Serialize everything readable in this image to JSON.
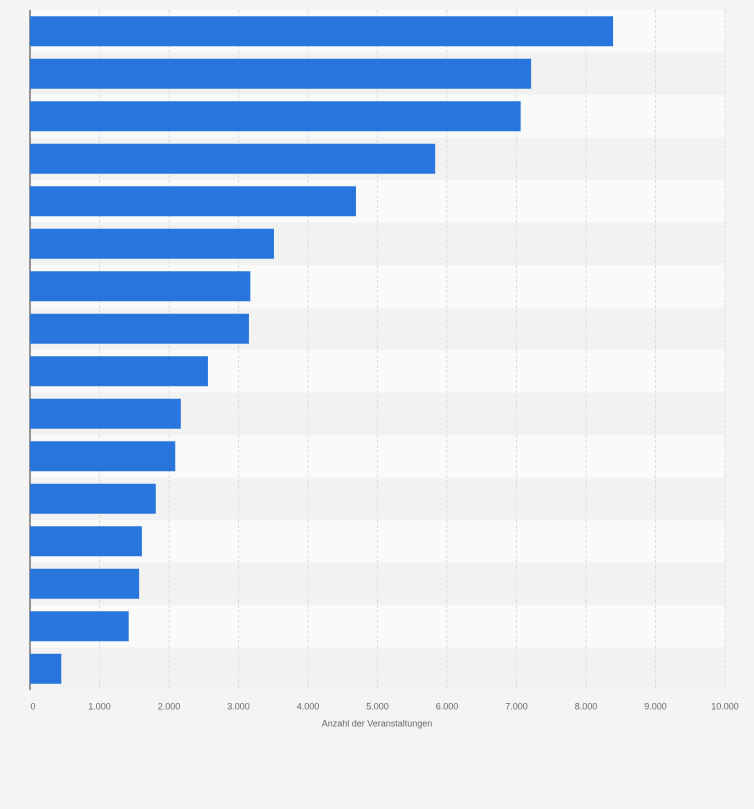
{
  "chart_data": {
    "type": "bar",
    "orientation": "horizontal",
    "x_label": "Anzahl der Veranstaltungen",
    "categories": [
      null,
      null,
      null,
      null,
      null,
      null,
      null,
      null,
      null,
      null,
      null,
      null,
      null,
      null,
      null,
      null
    ],
    "values": [
      8390,
      7210,
      7060,
      5830,
      4690,
      3510,
      3170,
      3150,
      2560,
      2170,
      2090,
      1810,
      1610,
      1570,
      1420,
      450
    ],
    "color": "#2876dd",
    "xlim": [
      0,
      10000
    ],
    "xticks": [
      0,
      {
        "value": 1000,
        "label": "1.000"
      },
      {
        "value": 2000,
        "label": "2.000"
      },
      {
        "value": 3000,
        "label": "3.000"
      },
      {
        "value": 4000,
        "label": "4.000"
      },
      {
        "value": 5000,
        "label": "5.000"
      },
      {
        "value": 6000,
        "label": "6.000"
      },
      {
        "value": 7000,
        "label": "7.000"
      },
      {
        "value": 8000,
        "label": "8.000"
      },
      {
        "value": 9000,
        "label": "9.000"
      },
      {
        "value": 10000,
        "label": "10.000"
      }
    ],
    "grid": true
  }
}
